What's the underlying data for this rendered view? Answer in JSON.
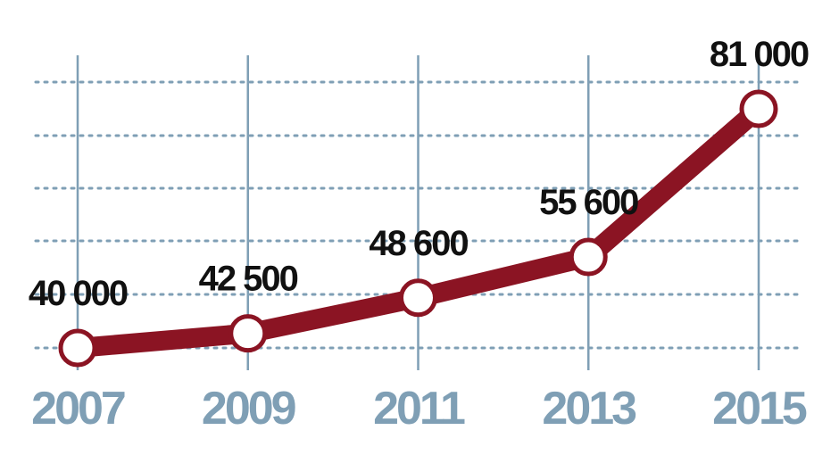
{
  "chart_data": {
    "type": "line",
    "categories": [
      "2007",
      "2009",
      "2011",
      "2013",
      "2015"
    ],
    "series": [
      {
        "color": "#8b1423",
        "values": [
          40000,
          42500,
          48600,
          55600,
          81000
        ],
        "value_labels": [
          "40 000",
          "42 500",
          "48 600",
          "55 600",
          "81 000"
        ]
      }
    ],
    "ylim": [
      40000,
      81000
    ]
  }
}
